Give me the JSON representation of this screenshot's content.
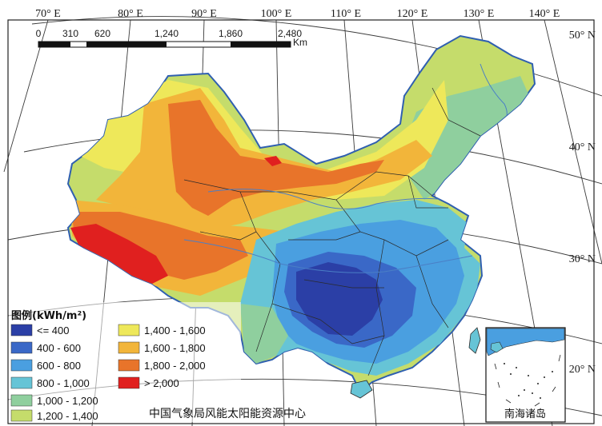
{
  "map": {
    "longitude_labels": [
      "70° E",
      "80° E",
      "90° E",
      "100° E",
      "110° E",
      "120° E",
      "130° E",
      "140° E"
    ],
    "latitude_labels": [
      "50° N",
      "40° N",
      "30° N",
      "20° N"
    ],
    "scale_bar": {
      "ticks": [
        "0",
        "310",
        "620",
        "1,240",
        "1,860",
        "2,480"
      ],
      "unit": "Km"
    },
    "credit": "中国气象局风能太阳能资源中心",
    "inset_label": "南海诸岛"
  },
  "legend": {
    "title": "图例(kWh/m²)",
    "classes": [
      {
        "label": "<= 400",
        "color": "#2b3fa6"
      },
      {
        "label": "400 - 600",
        "color": "#3a68c7"
      },
      {
        "label": "600 - 800",
        "color": "#4a9fe0"
      },
      {
        "label": "800 - 1,000",
        "color": "#66c4d6"
      },
      {
        "label": "1,000 - 1,200",
        "color": "#8fcf9e"
      },
      {
        "label": "1,200 - 1,400",
        "color": "#c5dc6b"
      },
      {
        "label": "1,400 - 1,600",
        "color": "#eee85a"
      },
      {
        "label": "1,600 - 1,800",
        "color": "#f2b53a"
      },
      {
        "label": "1,800 - 2,000",
        "color": "#e8742a"
      },
      {
        "label": "> 2,000",
        "color": "#e0201f"
      }
    ]
  },
  "colors": {
    "ocean": "#ffffff",
    "border": "#2a2a2a",
    "river": "#4a7fc6"
  }
}
